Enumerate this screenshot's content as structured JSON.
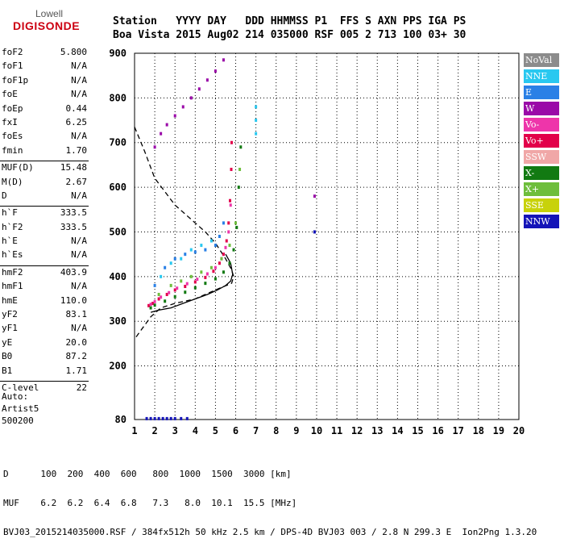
{
  "logo": {
    "line1": "Lowell",
    "line2": "DIGISONDE"
  },
  "header": {
    "labels": [
      "Station",
      "YYYY",
      "DAY",
      "DDD",
      "HHMMSS",
      "P1",
      "FFS",
      "S",
      "AXN",
      "PPS",
      "IGA",
      "PS"
    ],
    "values": [
      "Boa Vista",
      "2015",
      "Aug02",
      "214",
      "035000",
      "RSF",
      "005",
      "2",
      "713",
      "100",
      "03+",
      "30"
    ]
  },
  "params": [
    {
      "name": "foF2",
      "value": "5.800"
    },
    {
      "name": "foF1",
      "value": "N/A"
    },
    {
      "name": "foF1p",
      "value": "N/A"
    },
    {
      "name": "foE",
      "value": "N/A"
    },
    {
      "name": "foEp",
      "value": "0.44"
    },
    {
      "name": "fxI",
      "value": "6.25"
    },
    {
      "name": "foEs",
      "value": "N/A"
    },
    {
      "name": "fmin",
      "value": "1.70"
    },
    {
      "sep": true
    },
    {
      "name": "MUF(D)",
      "value": "15.48"
    },
    {
      "name": "M(D)",
      "value": "2.67"
    },
    {
      "name": "D",
      "value": "N/A"
    },
    {
      "sep": true
    },
    {
      "name": "h`F",
      "value": "333.5"
    },
    {
      "name": "h`F2",
      "value": "333.5"
    },
    {
      "name": "h`E",
      "value": "N/A"
    },
    {
      "name": "h`Es",
      "value": "N/A"
    },
    {
      "sep": true
    },
    {
      "name": "hmF2",
      "value": "403.9"
    },
    {
      "name": "hmF1",
      "value": "N/A"
    },
    {
      "name": "hmE",
      "value": "110.0"
    },
    {
      "name": "yF2",
      "value": "83.1"
    },
    {
      "name": "yF1",
      "value": "N/A"
    },
    {
      "name": "yE",
      "value": "20.0"
    },
    {
      "name": "B0",
      "value": "87.2"
    },
    {
      "name": "B1",
      "value": "1.71"
    },
    {
      "sep": true
    },
    {
      "name": "C-level",
      "value": "22"
    }
  ],
  "auto": [
    "Auto:",
    "Artist5",
    "500200"
  ],
  "legend": [
    {
      "label": "NoVal",
      "color": "#8c8c8c"
    },
    {
      "label": "NNE",
      "color": "#29c8f0"
    },
    {
      "label": "E",
      "color": "#2a80e6"
    },
    {
      "label": "W",
      "color": "#9a0aa8"
    },
    {
      "label": "Vo-",
      "color": "#ee35aa"
    },
    {
      "label": "Vo+",
      "color": "#e2004a"
    },
    {
      "label": "SSW",
      "color": "#f0a7a7"
    },
    {
      "label": "X-",
      "color": "#127a12"
    },
    {
      "label": "X+",
      "color": "#6ebe3c"
    },
    {
      "label": "SSE",
      "color": "#c8d20a"
    },
    {
      "label": "NNW",
      "color": "#1414b8"
    }
  ],
  "footer": {
    "line1": "D      100  200  400  600   800  1000  1500  3000 [km]",
    "line2": "MUF    6.2  6.2  6.4  6.8   7.3   8.0  10.1  15.5 [MHz]",
    "line3": "BVJ03_2015214035000.RSF / 384fx512h 50 kHz 2.5 km / DPS-4D BVJ03 003 / 2.8 N 299.3 E  Ion2Png 1.3.20"
  },
  "chart_data": {
    "type": "scatter",
    "xlim": [
      1,
      20
    ],
    "ylim": [
      80,
      900
    ],
    "xticks": [
      1,
      2,
      3,
      4,
      5,
      6,
      7,
      8,
      9,
      10,
      11,
      12,
      13,
      14,
      15,
      16,
      17,
      18,
      19,
      20
    ],
    "yticks": [
      80,
      200,
      300,
      400,
      500,
      600,
      700,
      800,
      900
    ],
    "grid": true,
    "series": [
      {
        "name": "Vo+",
        "color": "#e2004a",
        "x": [
          1.7,
          1.9,
          2.2,
          2.6,
          3.0,
          3.5,
          4.0,
          4.5,
          4.9,
          5.2,
          5.4,
          5.55,
          5.65,
          5.72,
          5.78,
          5.8
        ],
        "y": [
          335,
          340,
          350,
          360,
          370,
          378,
          388,
          398,
          412,
          430,
          450,
          480,
          520,
          570,
          640,
          700
        ]
      },
      {
        "name": "Vo-",
        "color": "#ee35aa",
        "x": [
          1.8,
          2.0,
          2.3,
          2.7,
          3.1,
          3.6,
          4.1,
          4.6,
          5.0,
          5.3,
          5.5,
          5.65,
          5.75
        ],
        "y": [
          338,
          344,
          354,
          364,
          374,
          384,
          394,
          406,
          420,
          440,
          465,
          500,
          560
        ]
      },
      {
        "name": "X-",
        "color": "#127a12",
        "x": [
          1.8,
          2.0,
          2.5,
          3.0,
          3.5,
          4.0,
          4.5,
          5.0,
          5.4,
          5.7,
          5.9,
          6.05,
          6.15,
          6.25
        ],
        "y": [
          330,
          336,
          345,
          355,
          365,
          375,
          385,
          395,
          410,
          430,
          460,
          510,
          600,
          690
        ]
      },
      {
        "name": "X+",
        "color": "#6ebe3c",
        "x": [
          2.2,
          2.8,
          3.3,
          3.8,
          4.3,
          4.8,
          5.3,
          5.7,
          6.0,
          6.2
        ],
        "y": [
          360,
          380,
          390,
          400,
          410,
          420,
          440,
          470,
          520,
          640
        ]
      },
      {
        "name": "E",
        "color": "#2a80e6",
        "x": [
          2.0,
          2.5,
          3.0,
          3.5,
          4.0,
          4.5,
          5.0,
          5.2,
          5.4
        ],
        "y": [
          380,
          420,
          440,
          450,
          455,
          460,
          470,
          490,
          520
        ]
      },
      {
        "name": "NNE",
        "color": "#29c8f0",
        "x": [
          2.3,
          2.8,
          3.3,
          3.8,
          4.3,
          4.8,
          7.0,
          7.0,
          7.0
        ],
        "y": [
          400,
          430,
          440,
          460,
          470,
          480,
          720,
          750,
          780
        ]
      },
      {
        "name": "W",
        "color": "#9a0aa8",
        "x": [
          2.0,
          2.3,
          2.6,
          3.0,
          3.4,
          3.8,
          4.2,
          4.6,
          5.0,
          5.4,
          9.9
        ],
        "y": [
          690,
          720,
          740,
          760,
          780,
          800,
          820,
          840,
          860,
          885,
          580
        ]
      },
      {
        "name": "NNW",
        "color": "#1414b8",
        "x": [
          1.6,
          1.8,
          2.0,
          2.2,
          2.4,
          2.6,
          2.8,
          3.0,
          3.3,
          3.6,
          9.9
        ],
        "y": [
          82,
          82,
          82,
          82,
          82,
          82,
          82,
          82,
          82,
          82,
          500
        ]
      }
    ],
    "profile_solid": {
      "x": [
        1.8,
        2.2,
        2.8,
        3.4,
        4.0,
        4.6,
        5.1,
        5.5,
        5.75,
        5.85,
        5.75,
        5.5
      ],
      "y": [
        320,
        325,
        330,
        340,
        350,
        360,
        370,
        380,
        390,
        405,
        430,
        450
      ]
    },
    "profile_dashed": {
      "x": [
        1.0,
        1.5,
        2.0,
        2.5,
        3.0,
        3.5,
        4.0,
        4.5,
        5.0,
        5.5,
        5.8,
        5.9,
        5.8,
        5.0,
        4.0,
        3.0,
        2.3,
        1.8,
        1.0
      ],
      "y": [
        735,
        680,
        620,
        590,
        560,
        540,
        520,
        500,
        475,
        440,
        415,
        400,
        385,
        370,
        350,
        340,
        330,
        310,
        260
      ]
    }
  }
}
